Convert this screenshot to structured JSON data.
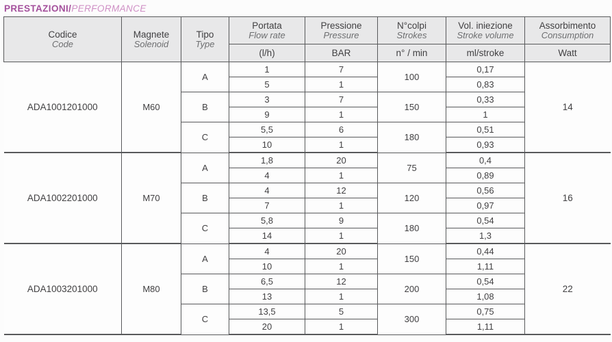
{
  "title": {
    "primary": "PRESTAZIONI/",
    "secondary": "PERFORMANCE"
  },
  "colors": {
    "title_primary": "#a4509c",
    "title_secondary": "#cf8fc5",
    "border": "#58595b",
    "header_bg": "#e8e8e9",
    "text": "#414042"
  },
  "table": {
    "headers": {
      "codice": {
        "it": "Codice",
        "en": "Code"
      },
      "magnete": {
        "it": "Magnete",
        "en": "Solenoid"
      },
      "tipo": {
        "it": "Tipo",
        "en": "Type"
      },
      "portata": {
        "it": "Portata",
        "en": "Flow rate",
        "unit": "(l/h)"
      },
      "pressione": {
        "it": "Pressione",
        "en": "Pressure",
        "unit": "BAR"
      },
      "colpi": {
        "it": "N°colpi",
        "en": "Strokes",
        "unit": "n° / min"
      },
      "iniezione": {
        "it": "Vol. iniezione",
        "en": "Stroke volume",
        "unit": "ml/stroke"
      },
      "assorbimento": {
        "it": "Assorbimento",
        "en": "Consumption",
        "unit": "Watt"
      }
    },
    "groups": [
      {
        "code": "ADA1001201000",
        "solenoid": "M60",
        "watt": "14",
        "types": [
          {
            "type": "A",
            "strokes": "100",
            "rows": [
              {
                "flow": "1",
                "pressure": "7",
                "volume": "0,17"
              },
              {
                "flow": "5",
                "pressure": "1",
                "volume": "0,83"
              }
            ]
          },
          {
            "type": "B",
            "strokes": "150",
            "rows": [
              {
                "flow": "3",
                "pressure": "7",
                "volume": "0,33"
              },
              {
                "flow": "9",
                "pressure": "1",
                "volume": "1"
              }
            ]
          },
          {
            "type": "C",
            "strokes": "180",
            "rows": [
              {
                "flow": "5,5",
                "pressure": "6",
                "volume": "0,51"
              },
              {
                "flow": "10",
                "pressure": "1",
                "volume": "0,93"
              }
            ]
          }
        ]
      },
      {
        "code": "ADA1002201000",
        "solenoid": "M70",
        "watt": "16",
        "types": [
          {
            "type": "A",
            "strokes": "75",
            "rows": [
              {
                "flow": "1,8",
                "pressure": "20",
                "volume": "0,4"
              },
              {
                "flow": "4",
                "pressure": "1",
                "volume": "0,89"
              }
            ]
          },
          {
            "type": "B",
            "strokes": "120",
            "rows": [
              {
                "flow": "4",
                "pressure": "12",
                "volume": "0,56"
              },
              {
                "flow": "7",
                "pressure": "1",
                "volume": "0,97"
              }
            ]
          },
          {
            "type": "C",
            "strokes": "180",
            "rows": [
              {
                "flow": "5,8",
                "pressure": "9",
                "volume": "0,54"
              },
              {
                "flow": "14",
                "pressure": "1",
                "volume": "1,3"
              }
            ]
          }
        ]
      },
      {
        "code": "ADA1003201000",
        "solenoid": "M80",
        "watt": "22",
        "types": [
          {
            "type": "A",
            "strokes": "150",
            "rows": [
              {
                "flow": "4",
                "pressure": "20",
                "volume": "0,44"
              },
              {
                "flow": "10",
                "pressure": "1",
                "volume": "1,11"
              }
            ]
          },
          {
            "type": "B",
            "strokes": "200",
            "rows": [
              {
                "flow": "6,5",
                "pressure": "12",
                "volume": "0,54"
              },
              {
                "flow": "13",
                "pressure": "1",
                "volume": "1,08"
              }
            ]
          },
          {
            "type": "C",
            "strokes": "300",
            "rows": [
              {
                "flow": "13,5",
                "pressure": "5",
                "volume": "0,75"
              },
              {
                "flow": "20",
                "pressure": "1",
                "volume": "1,11"
              }
            ]
          }
        ]
      }
    ]
  }
}
